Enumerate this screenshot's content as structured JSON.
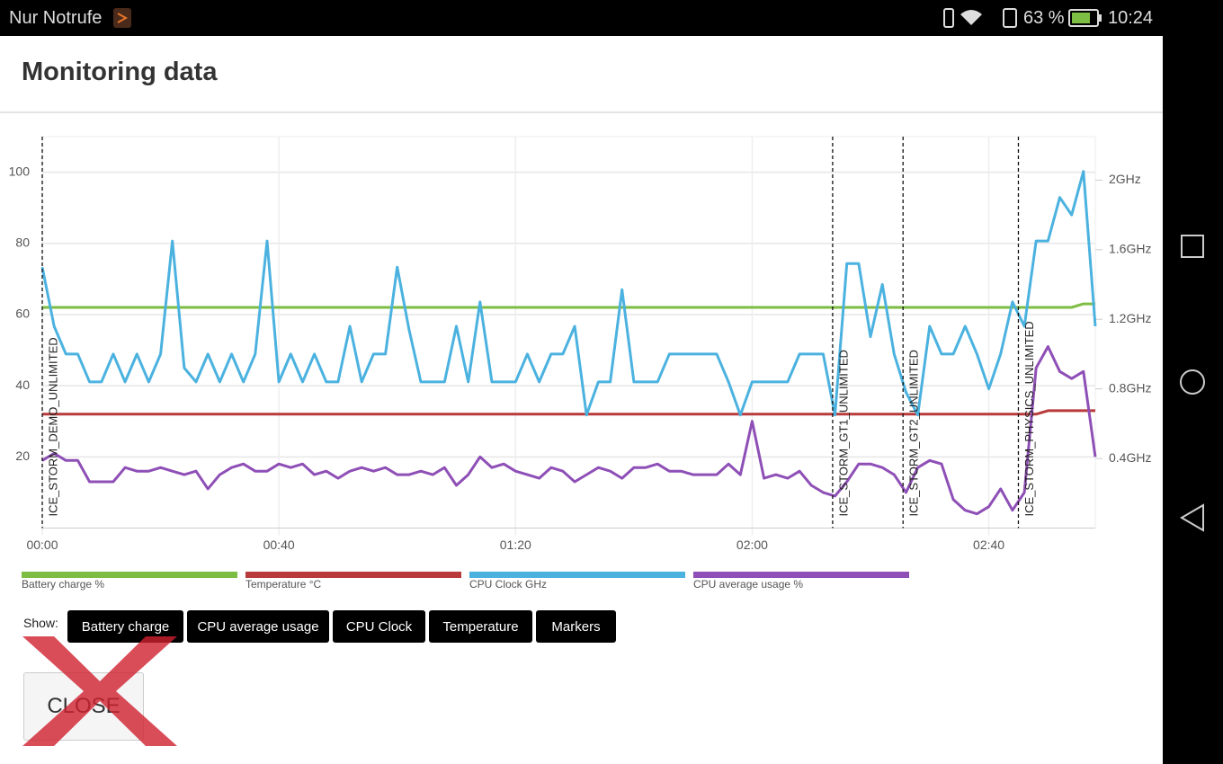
{
  "status_bar": {
    "carrier": "Nur Notrufe",
    "battery": "63 %",
    "time": "10:24"
  },
  "dialog": {
    "title": "Monitoring data",
    "show_label": "Show:",
    "buttons": [
      "Battery charge",
      "CPU average usage",
      "CPU Clock",
      "Temperature",
      "Markers"
    ],
    "close": "CLOSE"
  },
  "chart_data": {
    "type": "line",
    "x": [
      0,
      2,
      4,
      6,
      8,
      10,
      12,
      14,
      16,
      18,
      20,
      22,
      24,
      26,
      28,
      30,
      32,
      34,
      36,
      38,
      40,
      42,
      44,
      46,
      48,
      50,
      52,
      54,
      56,
      58,
      60,
      62,
      64,
      66,
      68,
      70,
      72,
      74,
      76,
      78,
      80,
      82,
      84,
      86,
      88,
      90,
      92,
      94,
      96,
      98,
      100,
      102,
      104,
      106,
      108,
      110,
      112,
      114,
      116,
      118,
      120,
      122,
      124,
      126,
      128,
      130,
      132,
      134,
      136,
      138,
      140,
      142,
      144,
      146,
      148,
      150,
      152,
      154,
      156,
      158,
      160,
      162,
      164,
      166,
      168,
      170,
      172,
      174,
      176,
      178
    ],
    "xlim": [
      0,
      178
    ],
    "xticks": [
      {
        "value": 0,
        "label": "00:00"
      },
      {
        "value": 40,
        "label": "00:40"
      },
      {
        "value": 80,
        "label": "01:20"
      },
      {
        "value": 120,
        "label": "02:00"
      },
      {
        "value": 160,
        "label": "02:40"
      }
    ],
    "ylim": [
      0,
      110
    ],
    "yticks": [
      20,
      40,
      60,
      80,
      100
    ],
    "y2lim": [
      0,
      2.25
    ],
    "y2ticks": [
      {
        "value": 0.4,
        "label": "0.4GHz"
      },
      {
        "value": 0.8,
        "label": "0.8GHz"
      },
      {
        "value": 1.2,
        "label": "1.2GHz"
      },
      {
        "value": 1.6,
        "label": "1.6GHz"
      },
      {
        "value": 2,
        "label": "2GHz"
      }
    ],
    "grid": true,
    "legend": "bottom",
    "markers": [
      {
        "x": 0,
        "label": "ICE_STORM_DEMO_UNLIMITED"
      },
      {
        "x": 133.6,
        "label": "ICE_STORM_GT1_UNLIMITED"
      },
      {
        "x": 145.5,
        "label": "ICE_STORM_GT2_UNLIMITED"
      },
      {
        "x": 165,
        "label": "ICE_STORM_PHYSICS_UNLIMITED"
      }
    ],
    "series": [
      {
        "name": "Battery charge %",
        "color": "#7dbd43",
        "values": [
          62,
          62,
          62,
          62,
          62,
          62,
          62,
          62,
          62,
          62,
          62,
          62,
          62,
          62,
          62,
          62,
          62,
          62,
          62,
          62,
          62,
          62,
          62,
          62,
          62,
          62,
          62,
          62,
          62,
          62,
          62,
          62,
          62,
          62,
          62,
          62,
          62,
          62,
          62,
          62,
          62,
          62,
          62,
          62,
          62,
          62,
          62,
          62,
          62,
          62,
          62,
          62,
          62,
          62,
          62,
          62,
          62,
          62,
          62,
          62,
          62,
          62,
          62,
          62,
          62,
          62,
          62,
          62,
          62,
          62,
          62,
          62,
          62,
          62,
          62,
          62,
          62,
          62,
          62,
          62,
          62,
          62,
          62,
          62,
          62,
          62,
          62,
          62,
          63,
          63
        ]
      },
      {
        "name": "Temperature °C",
        "color": "#b93a3a",
        "values": [
          32,
          32,
          32,
          32,
          32,
          32,
          32,
          32,
          32,
          32,
          32,
          32,
          32,
          32,
          32,
          32,
          32,
          32,
          32,
          32,
          32,
          32,
          32,
          32,
          32,
          32,
          32,
          32,
          32,
          32,
          32,
          32,
          32,
          32,
          32,
          32,
          32,
          32,
          32,
          32,
          32,
          32,
          32,
          32,
          32,
          32,
          32,
          32,
          32,
          32,
          32,
          32,
          32,
          32,
          32,
          32,
          32,
          32,
          32,
          32,
          32,
          32,
          32,
          32,
          32,
          32,
          32,
          32,
          32,
          32,
          32,
          32,
          32,
          32,
          32,
          32,
          32,
          32,
          32,
          32,
          32,
          32,
          32,
          32,
          32,
          33,
          33,
          33,
          33,
          33
        ]
      },
      {
        "name": "CPU Clock GHz",
        "color": "#4bb2e0",
        "axis": "y2",
        "values": [
          1.5,
          1.16,
          1.0,
          1.0,
          0.84,
          0.84,
          1.0,
          0.84,
          1.0,
          0.84,
          1.0,
          1.65,
          0.92,
          0.84,
          1.0,
          0.84,
          1.0,
          0.84,
          1.0,
          1.65,
          0.84,
          1.0,
          0.84,
          1.0,
          0.84,
          0.84,
          1.16,
          0.84,
          1.0,
          1.0,
          1.5,
          1.14,
          0.84,
          0.84,
          0.84,
          1.16,
          0.84,
          1.3,
          0.84,
          0.84,
          0.84,
          1.0,
          0.84,
          1.0,
          1.0,
          1.16,
          0.65,
          0.84,
          0.84,
          1.37,
          0.84,
          0.84,
          0.84,
          1.0,
          1.0,
          1.0,
          1.0,
          1.0,
          0.84,
          0.65,
          0.84,
          0.84,
          0.84,
          0.84,
          1.0,
          1.0,
          1.0,
          0.65,
          1.52,
          1.52,
          1.1,
          1.4,
          1.0,
          0.78,
          0.65,
          1.16,
          1.0,
          1.0,
          1.16,
          1.0,
          0.8,
          1.0,
          1.3,
          1.16,
          1.65,
          1.65,
          1.9,
          1.8,
          2.05,
          1.16
        ]
      },
      {
        "name": "CPU average usage %",
        "color": "#8e4fb6",
        "values": [
          19,
          21,
          19,
          19,
          13,
          13,
          13,
          17,
          16,
          16,
          17,
          16,
          15,
          16,
          11,
          15,
          17,
          18,
          16,
          16,
          18,
          17,
          18,
          15,
          16,
          14,
          16,
          17,
          16,
          17,
          15,
          15,
          16,
          15,
          17,
          12,
          15,
          20,
          17,
          18,
          16,
          15,
          14,
          17,
          16,
          13,
          15,
          17,
          16,
          14,
          17,
          17,
          18,
          16,
          16,
          15,
          15,
          15,
          18,
          15,
          30,
          14,
          15,
          14,
          16,
          12,
          10,
          9,
          13,
          18,
          18,
          17,
          15,
          10,
          17,
          19,
          18,
          8,
          5,
          4,
          6,
          11,
          5,
          10,
          45,
          51,
          44,
          42,
          44,
          20
        ]
      }
    ]
  }
}
